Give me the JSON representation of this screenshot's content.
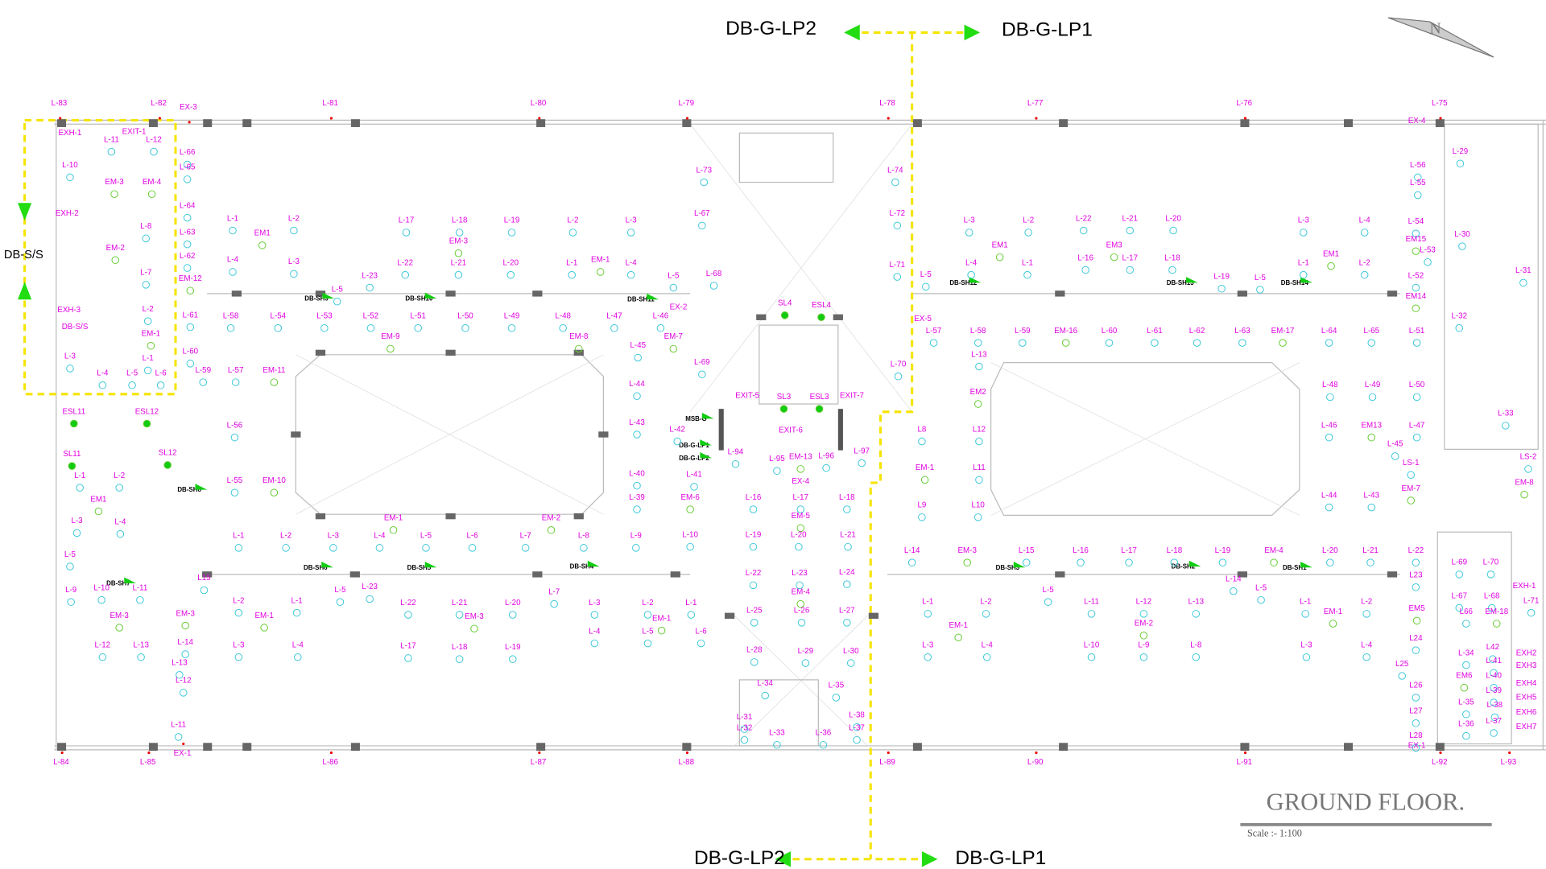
{
  "header": {
    "feeder_top": {
      "left": "DB-G-LP2",
      "right": "DB-G-LP1"
    },
    "feeder_bottom": {
      "left": "DB-G-LP2",
      "right": "DB-G-LP1"
    },
    "supply": "DB-S/S"
  },
  "drawing": {
    "title": "GROUND FLOOR.",
    "scale": "Scale :- 1:100"
  },
  "perimeter_labels": [
    "L-83",
    "L-82",
    "EX-3",
    "L-81",
    "L-80",
    "L-79",
    "L-78",
    "L-77",
    "L-76",
    "L-75",
    "L-84",
    "L-85",
    "EX-1",
    "L-86",
    "L-87",
    "L-88",
    "L-89",
    "L-90",
    "L-91",
    "L-92",
    "L-93"
  ],
  "panels": [
    "DB-SH9",
    "DB-SH10",
    "DB-SH11",
    "DB-SH12",
    "DB-SH13",
    "DB-SH14",
    "DB-SH8",
    "DB-SH7",
    "DB-SH6",
    "DB-SH5",
    "DB-SH4",
    "DB-SH3",
    "DB-SH2",
    "DB-SH1",
    "MSB-G",
    "DB-G-LP1",
    "DB-G-LP2"
  ],
  "fixtures": [
    "EXH-1",
    "EXIT-1",
    "L-11",
    "L-12",
    "L-10",
    "EM-3",
    "EM-4",
    "EXH-2",
    "L-8",
    "EM-2",
    "L-7",
    "EXH-3",
    "L-2",
    "EM-1",
    "L-3",
    "L-1",
    "L-66",
    "L-65",
    "L-64",
    "L-63",
    "L-62",
    "EM-12",
    "L-61",
    "L-60",
    "L-59",
    "L-58",
    "L-54",
    "L-53",
    "L-52",
    "L-51",
    "L-50",
    "L-49",
    "L-48",
    "L-47",
    "L-46",
    "EX-2",
    "EM-7",
    "L-45",
    "L-44",
    "L-43",
    "L-42",
    "L-41",
    "L-40",
    "L-39",
    "EM-9",
    "EM-8",
    "L-57",
    "EM-11",
    "L-56",
    "L-55",
    "EM-10",
    "ESL11",
    "ESL12",
    "SL11",
    "SL12",
    "L-73",
    "L-74",
    "L-67",
    "L-68",
    "L-69",
    "L-70",
    "L-72",
    "L-71",
    "SL4",
    "ESL4",
    "EXIT-5",
    "SL3",
    "ESL3",
    "EXIT-7",
    "EXIT-6",
    "L-94",
    "L-95",
    "EM-13",
    "L-96",
    "L-97",
    "EX-4",
    "L-16",
    "L-17",
    "L-18",
    "EM-5",
    "L-19",
    "L-20",
    "L-21",
    "L-22",
    "L-23",
    "L-24",
    "EM-4",
    "L-25",
    "L-26",
    "L-27",
    "L-28",
    "L-29",
    "L-30",
    "L-34",
    "L-35",
    "L-31",
    "L-38",
    "L-32",
    "L-33",
    "L-36",
    "L-37",
    "EM-6",
    "L-10",
    "L8",
    "L12",
    "L11",
    "L10",
    "L9",
    "EM-1",
    "EM2",
    "L-13",
    "L-57",
    "L-58",
    "L-59",
    "EM-16",
    "L-60",
    "L-61",
    "L-62",
    "L-63",
    "EM-17",
    "L-64",
    "L-65",
    "L-51",
    "L-48",
    "L-49",
    "L-50",
    "L-46",
    "EM13",
    "L-47",
    "L-44",
    "L-43",
    "L-45",
    "LS-1",
    "EM-7",
    "LS-2",
    "EM-8",
    "L-33",
    "L-29",
    "L-56",
    "L-55",
    "L-54",
    "EM15",
    "L-30",
    "L-53",
    "L-52",
    "EM14",
    "L-32",
    "L-31",
    "EX-4",
    "L-14",
    "EM-3",
    "L-15",
    "L-16",
    "L-17",
    "L-18",
    "L-19",
    "EM-4",
    "L-20",
    "L-21",
    "L-22",
    "L-69",
    "L-70",
    "L23",
    "EXH-1",
    "L-67",
    "L-68",
    "L-71",
    "EM5",
    "L66",
    "EM-18",
    "L24",
    "L-34",
    "L42",
    "EXH2",
    "L25",
    "L-41",
    "EXH3",
    "EM6",
    "L-40",
    "EXH4",
    "L26",
    "L-39",
    "EXH5",
    "L-35",
    "L-38",
    "EXH6",
    "L27",
    "L-37",
    "L-36",
    "EXH7",
    "L28",
    "EX-1",
    "L-1",
    "L-2",
    "EM1",
    "L-4",
    "L-3",
    "L-5",
    "L-23",
    "L-17",
    "L-18",
    "L-19",
    "EM-3",
    "L-22",
    "L-21",
    "L-20",
    "L-2",
    "L-3",
    "EM-1",
    "L-1",
    "L-4",
    "L-5",
    "L-3",
    "L-2",
    "EM1",
    "L-4",
    "L-1",
    "L-5",
    "L-22",
    "L-21",
    "L-20",
    "EM3",
    "L-16",
    "L-17",
    "L-18",
    "L-19",
    "L-5",
    "L-3",
    "L-4",
    "EM1",
    "L-1",
    "L-2",
    "L-1",
    "L-2",
    "EM1",
    "L-3",
    "L-4",
    "L-5",
    "L-9",
    "L-10",
    "L-11",
    "EM-3",
    "L-12",
    "L-13",
    "L15",
    "L-1",
    "L-2",
    "L-3",
    "L-4",
    "L-5",
    "L-6",
    "L-7",
    "L-8",
    "L-9",
    "EM-1",
    "EM-2",
    "EM-3",
    "L-14",
    "L-13",
    "L-12",
    "L-11",
    "L-2",
    "L-1",
    "EM-1",
    "L-3",
    "L-4",
    "L-5",
    "L-23",
    "L-22",
    "L-21",
    "L-20",
    "EM-3",
    "L-17",
    "L-18",
    "L-19",
    "L-7",
    "L-3",
    "L-2",
    "L-1",
    "EM-1",
    "L-5",
    "L-4",
    "L-6",
    "L-1",
    "L-2",
    "EM-1",
    "L-3",
    "L-4",
    "L-5",
    "L-11",
    "L-12",
    "L-13",
    "EM-2",
    "L-10",
    "L-9",
    "L-8",
    "L-14",
    "L-5",
    "L-1",
    "L-2",
    "EM-1",
    "L-3",
    "L-4",
    "L-4",
    "L-5",
    "L-6",
    "EX-5",
    "DB-S/S"
  ]
}
